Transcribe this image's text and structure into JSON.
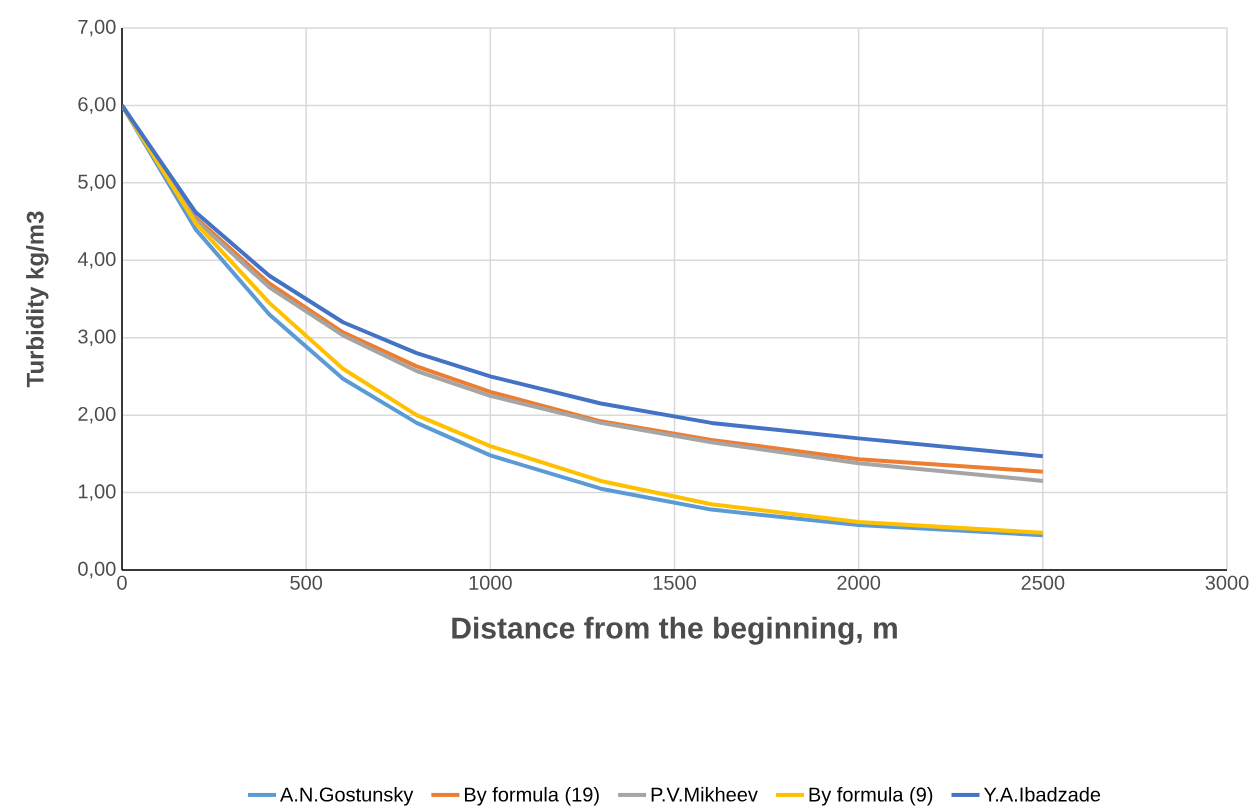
{
  "chart_data": {
    "type": "line",
    "xlabel": "Distance from the beginning, m",
    "ylabel": "Turbidity kg/m3",
    "x": [
      0,
      200,
      400,
      600,
      800,
      1000,
      1300,
      1600,
      2000,
      2500
    ],
    "series": [
      {
        "name": "A.N.Gostunsky",
        "color": "#5b9bd5",
        "values": [
          6.0,
          4.4,
          3.3,
          2.47,
          1.9,
          1.48,
          1.05,
          0.78,
          0.58,
          0.45
        ]
      },
      {
        "name": "By formula (19)",
        "color": "#ed7d31",
        "values": [
          6.0,
          4.55,
          3.7,
          3.07,
          2.63,
          2.3,
          1.92,
          1.68,
          1.43,
          1.27
        ]
      },
      {
        "name": "P.V.Mikheev",
        "color": "#a5a5a5",
        "values": [
          6.0,
          4.52,
          3.65,
          3.03,
          2.57,
          2.25,
          1.9,
          1.65,
          1.38,
          1.15
        ]
      },
      {
        "name": "By formula (9)",
        "color": "#ffc000",
        "values": [
          6.0,
          4.48,
          3.45,
          2.6,
          2.0,
          1.6,
          1.15,
          0.85,
          0.62,
          0.48
        ]
      },
      {
        "name": "Y.A.Ibadzade",
        "color": "#4472c4",
        "values": [
          6.0,
          4.62,
          3.8,
          3.2,
          2.8,
          2.5,
          2.15,
          1.9,
          1.7,
          1.47
        ]
      }
    ],
    "xlim": [
      0,
      3000
    ],
    "xticks": [
      0,
      500,
      1000,
      1500,
      2000,
      2500,
      3000
    ],
    "ylim": [
      0,
      7
    ],
    "yticks": [
      {
        "value": 0,
        "label": "0,00"
      },
      {
        "value": 1,
        "label": "1,00"
      },
      {
        "value": 2,
        "label": "2,00"
      },
      {
        "value": 3,
        "label": "3,00"
      },
      {
        "value": 4,
        "label": "4,00"
      },
      {
        "value": 5,
        "label": "5,00"
      },
      {
        "value": 6,
        "label": "6,00"
      },
      {
        "value": 7,
        "label": "7,00"
      }
    ],
    "grid": true,
    "legend": "bottom",
    "marker": "none",
    "line_style": "solid"
  }
}
